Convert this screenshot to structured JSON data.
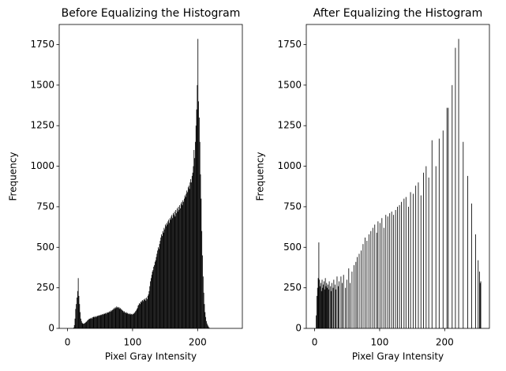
{
  "chart_data": [
    {
      "type": "histogram",
      "title": "Before Equalizing the Histogram",
      "x_label": "Pixel Gray Intensity",
      "y_label": "Frequency",
      "color": "#000000",
      "bins": [
        0,
        1,
        2,
        3,
        4,
        5,
        6,
        7,
        8,
        9,
        10,
        11,
        12,
        13,
        14,
        15,
        16,
        17,
        18,
        19,
        20,
        21,
        22,
        23,
        24,
        25,
        26,
        27,
        28,
        29,
        30,
        31,
        32,
        33,
        34,
        35,
        36,
        37,
        38,
        39,
        40,
        41,
        42,
        43,
        44,
        45,
        46,
        47,
        48,
        49,
        50,
        51,
        52,
        53,
        54,
        55,
        56,
        57,
        58,
        59,
        60,
        61,
        62,
        63,
        64,
        65,
        66,
        67,
        68,
        69,
        70,
        71,
        72,
        73,
        74,
        75,
        76,
        77,
        78,
        79,
        80,
        81,
        82,
        83,
        84,
        85,
        86,
        87,
        88,
        89,
        90,
        91,
        92,
        93,
        94,
        95,
        96,
        97,
        98,
        99,
        100,
        101,
        102,
        103,
        104,
        105,
        106,
        107,
        108,
        109,
        110,
        111,
        112,
        113,
        114,
        115,
        116,
        117,
        118,
        119,
        120,
        121,
        122,
        123,
        124,
        125,
        126,
        127,
        128,
        129,
        130,
        131,
        132,
        133,
        134,
        135,
        136,
        137,
        138,
        139,
        140,
        141,
        142,
        143,
        144,
        145,
        146,
        147,
        148,
        149,
        150,
        151,
        152,
        153,
        154,
        155,
        156,
        157,
        158,
        159,
        160,
        161,
        162,
        163,
        164,
        165,
        166,
        167,
        168,
        169,
        170,
        171,
        172,
        173,
        174,
        175,
        176,
        177,
        178,
        179,
        180,
        181,
        182,
        183,
        184,
        185,
        186,
        187,
        188,
        189,
        190,
        191,
        192,
        193,
        194,
        195,
        196,
        197,
        198,
        199,
        200,
        201,
        202,
        203,
        204,
        205,
        206,
        207,
        208,
        209,
        210,
        211,
        212,
        213,
        214,
        215,
        216,
        217,
        218,
        219,
        220,
        221,
        222,
        223,
        224,
        225,
        226,
        227,
        228,
        229,
        230,
        231,
        232,
        233,
        234,
        235,
        236,
        237,
        238,
        239,
        240,
        241,
        242,
        243,
        244,
        245,
        246,
        247,
        248,
        249,
        250,
        251,
        252,
        253,
        254,
        255,
        256
      ],
      "values": [
        0,
        0,
        0,
        0,
        0,
        0,
        0,
        0,
        0,
        5,
        20,
        60,
        120,
        150,
        190,
        230,
        310,
        200,
        150,
        100,
        60,
        45,
        35,
        30,
        28,
        30,
        32,
        35,
        40,
        42,
        48,
        52,
        55,
        60,
        58,
        62,
        65,
        60,
        68,
        70,
        72,
        68,
        75,
        70,
        72,
        78,
        75,
        80,
        78,
        82,
        80,
        85,
        82,
        88,
        85,
        90,
        88,
        92,
        95,
        90,
        98,
        95,
        100,
        98,
        105,
        102,
        110,
        105,
        112,
        115,
        118,
        125,
        120,
        130,
        125,
        135,
        128,
        132,
        125,
        130,
        120,
        125,
        118,
        115,
        110,
        108,
        100,
        105,
        98,
        95,
        100,
        92,
        95,
        90,
        88,
        92,
        85,
        90,
        88,
        85,
        90,
        88,
        95,
        98,
        105,
        110,
        118,
        125,
        140,
        145,
        155,
        150,
        165,
        160,
        170,
        175,
        168,
        180,
        175,
        185,
        170,
        190,
        180,
        200,
        210,
        230,
        260,
        290,
        310,
        330,
        350,
        360,
        380,
        390,
        410,
        420,
        440,
        460,
        480,
        500,
        490,
        520,
        540,
        560,
        580,
        570,
        600,
        590,
        620,
        610,
        640,
        630,
        650,
        640,
        660,
        670,
        650,
        680,
        670,
        690,
        700,
        680,
        710,
        700,
        720,
        690,
        730,
        710,
        740,
        720,
        750,
        730,
        760,
        740,
        770,
        780,
        760,
        790,
        780,
        800,
        820,
        810,
        830,
        850,
        840,
        870,
        880,
        860,
        900,
        920,
        900,
        940,
        960,
        1000,
        1100,
        1050,
        1150,
        1250,
        1350,
        1500,
        1785,
        1400,
        1300,
        1150,
        950,
        800,
        600,
        450,
        320,
        220,
        150,
        100,
        70,
        45,
        30,
        20,
        12,
        6,
        3,
        0,
        0,
        0,
        0,
        0,
        0,
        0,
        0,
        0,
        0,
        0,
        0,
        0,
        0,
        0,
        0,
        0,
        0,
        0,
        0,
        0,
        0,
        0,
        0,
        0,
        0,
        0,
        0,
        0,
        0,
        0,
        0,
        0,
        0,
        0,
        0,
        0
      ],
      "xlim": [
        -12.8,
        268.8
      ],
      "xticks": [
        0,
        100,
        200
      ],
      "ylim": [
        0,
        1874
      ],
      "yticks": [
        0,
        250,
        500,
        750,
        1000,
        1250,
        1500,
        1750
      ]
    },
    {
      "type": "histogram",
      "title": "After Equalizing the Histogram",
      "x_label": "Pixel Gray Intensity",
      "y_label": "Frequency",
      "color": "#000000",
      "bins": [
        0,
        1,
        2,
        3,
        4,
        5,
        6,
        7,
        8,
        9,
        10,
        11,
        12,
        13,
        14,
        15,
        16,
        17,
        18,
        19,
        20,
        21,
        22,
        23,
        24,
        25,
        26,
        27,
        28,
        29,
        30,
        31,
        32,
        33,
        34,
        35,
        36,
        37,
        38,
        39,
        40,
        41,
        42,
        43,
        44,
        45,
        46,
        47,
        48,
        49,
        50,
        51,
        52,
        53,
        54,
        55,
        56,
        57,
        58,
        59,
        60,
        61,
        62,
        63,
        64,
        65,
        66,
        67,
        68,
        69,
        70,
        71,
        72,
        73,
        74,
        75,
        76,
        77,
        78,
        79,
        80,
        81,
        82,
        83,
        84,
        85,
        86,
        87,
        88,
        89,
        90,
        91,
        92,
        93,
        94,
        95,
        96,
        97,
        98,
        99,
        100,
        101,
        102,
        103,
        104,
        105,
        106,
        107,
        108,
        109,
        110,
        111,
        112,
        113,
        114,
        115,
        116,
        117,
        118,
        119,
        120,
        121,
        122,
        123,
        124,
        125,
        126,
        127,
        128,
        129,
        130,
        131,
        132,
        133,
        134,
        135,
        136,
        137,
        138,
        139,
        140,
        141,
        142,
        143,
        144,
        145,
        146,
        147,
        148,
        149,
        150,
        151,
        152,
        153,
        154,
        155,
        156,
        157,
        158,
        159,
        160,
        161,
        162,
        163,
        164,
        165,
        166,
        167,
        168,
        169,
        170,
        171,
        172,
        173,
        174,
        175,
        176,
        177,
        178,
        179,
        180,
        181,
        182,
        183,
        184,
        185,
        186,
        187,
        188,
        189,
        190,
        191,
        192,
        193,
        194,
        195,
        196,
        197,
        198,
        199,
        200,
        201,
        202,
        203,
        204,
        205,
        206,
        207,
        208,
        209,
        210,
        211,
        212,
        213,
        214,
        215,
        216,
        217,
        218,
        219,
        220,
        221,
        222,
        223,
        224,
        225,
        226,
        227,
        228,
        229,
        230,
        231,
        232,
        233,
        234,
        235,
        236,
        237,
        238,
        239,
        240,
        241,
        242,
        243,
        244,
        245,
        246,
        247,
        248,
        249,
        250,
        251,
        252,
        253,
        254,
        255,
        256
      ],
      "values": [
        0,
        0,
        80,
        200,
        250,
        310,
        530,
        300,
        260,
        280,
        230,
        300,
        250,
        270,
        290,
        240,
        310,
        260,
        280,
        250,
        270,
        240,
        290,
        0,
        260,
        230,
        280,
        0,
        250,
        300,
        0,
        270,
        240,
        0,
        320,
        0,
        260,
        290,
        0,
        0,
        320,
        0,
        280,
        0,
        330,
        0,
        0,
        250,
        0,
        300,
        0,
        0,
        370,
        0,
        280,
        0,
        0,
        350,
        0,
        0,
        390,
        0,
        0,
        410,
        0,
        440,
        0,
        0,
        460,
        0,
        0,
        480,
        0,
        0,
        520,
        0,
        0,
        560,
        0,
        0,
        540,
        0,
        0,
        580,
        0,
        0,
        600,
        0,
        0,
        620,
        0,
        0,
        640,
        0,
        0,
        590,
        0,
        660,
        0,
        0,
        650,
        0,
        0,
        680,
        0,
        0,
        620,
        0,
        0,
        700,
        0,
        0,
        690,
        0,
        0,
        710,
        0,
        0,
        720,
        0,
        0,
        700,
        0,
        0,
        730,
        0,
        0,
        750,
        0,
        0,
        760,
        0,
        0,
        780,
        0,
        0,
        0,
        800,
        0,
        0,
        810,
        0,
        0,
        0,
        750,
        0,
        0,
        840,
        0,
        0,
        0,
        830,
        0,
        0,
        0,
        880,
        0,
        0,
        0,
        900,
        0,
        0,
        0,
        820,
        0,
        0,
        0,
        960,
        0,
        0,
        0,
        1000,
        0,
        0,
        0,
        930,
        0,
        0,
        0,
        0,
        1160,
        0,
        0,
        0,
        0,
        0,
        1000,
        0,
        0,
        0,
        0,
        1170,
        0,
        0,
        0,
        0,
        0,
        1220,
        0,
        0,
        0,
        0,
        0,
        1360,
        0,
        1360,
        0,
        0,
        0,
        0,
        0,
        1500,
        0,
        0,
        0,
        0,
        1730,
        0,
        0,
        0,
        0,
        1785,
        0,
        0,
        0,
        0,
        0,
        0,
        1150,
        0,
        0,
        0,
        0,
        0,
        0,
        940,
        0,
        0,
        0,
        0,
        0,
        770,
        0,
        0,
        0,
        0,
        0,
        580,
        0,
        0,
        0,
        420,
        0,
        350,
        280,
        290
      ],
      "xlim": [
        -12.8,
        268.8
      ],
      "xticks": [
        0,
        100,
        200
      ],
      "ylim": [
        0,
        1874
      ],
      "yticks": [
        0,
        250,
        500,
        750,
        1000,
        1250,
        1500,
        1750
      ]
    }
  ]
}
